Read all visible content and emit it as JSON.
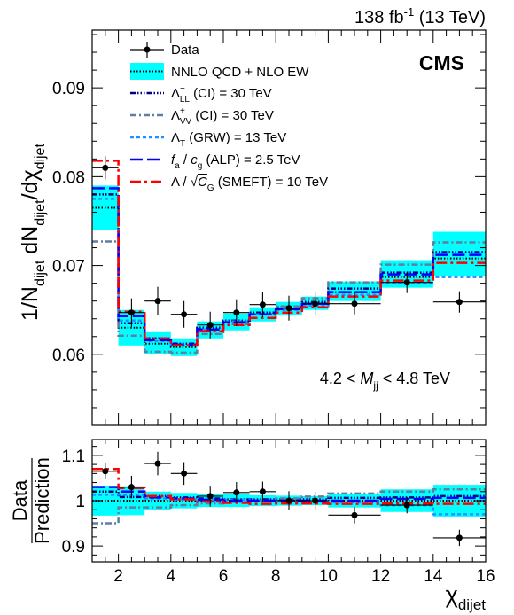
{
  "header": {
    "lumi_value": "138 fb",
    "lumi_exp": "-1",
    "lumi_energy": " (13 TeV)",
    "experiment": "CMS"
  },
  "annotation": {
    "prefix": "4.2 < ",
    "m_letter": "M",
    "m_sub": "jj",
    "suffix": " < 4.8 TeV"
  },
  "legend": {
    "data": "Data",
    "nnlo": "NNLO QCD + NLO EW",
    "ci_ll": {
      "sym": "Λ",
      "sub": "LL",
      "sup": "−",
      "text": " (CI) = 30 TeV"
    },
    "ci_vv": {
      "sym": "Λ",
      "sub": "VV",
      "sup": "+",
      "text": " (CI) = 30 TeV"
    },
    "grw": {
      "sym": "Λ",
      "sub": "T",
      "text": " (GRW) = 13 TeV"
    },
    "alp": {
      "f": "f",
      "f_sub": "a",
      "mid": " / ",
      "c": "c",
      "c_sub": "g",
      "text": " (ALP) = 2.5 TeV"
    },
    "smeft": {
      "pre": "Λ / ",
      "c": "C",
      "c_sub": "G",
      "text": " (SMEFT) = 10 TeV"
    }
  },
  "colors": {
    "band": "#00ffff",
    "nnlo_line": "#000000",
    "ci_ll": "#000080",
    "ci_vv": "#5f7f9f",
    "grw": "#1e90ff",
    "alp": "#0000ff",
    "smeft": "#ff0000",
    "data": "#000000"
  },
  "chart_data": [
    {
      "type": "line",
      "panel": "main",
      "ylabel": "1/N dN/dχ",
      "ylabel_parts": {
        "n": "1/N",
        "n_sub": "dijet",
        "dn": " dN",
        "dn_sub": "dijet",
        "dchi": "/dχ",
        "dchi_sub": "dijet"
      },
      "xlim": [
        1,
        16
      ],
      "ylim": [
        0.052,
        0.0965
      ],
      "yticks": [
        0.06,
        0.07,
        0.08,
        0.09
      ],
      "ytick_labels": [
        "0.06",
        "0.07",
        "0.08",
        "0.09"
      ],
      "x_edges": [
        1,
        2,
        3,
        4,
        5,
        6,
        7,
        8,
        9,
        10,
        12,
        14,
        16
      ],
      "series": [
        {
          "name": "Data",
          "kind": "points",
          "x": [
            1.5,
            2.5,
            3.5,
            4.5,
            5.5,
            6.5,
            7.5,
            8.5,
            9.5,
            11,
            13,
            15
          ],
          "y": [
            0.081,
            0.0647,
            0.066,
            0.0645,
            0.0633,
            0.0647,
            0.0656,
            0.0652,
            0.0657,
            0.0657,
            0.0681,
            0.0659
          ],
          "yerr": [
            0.0013,
            0.0016,
            0.0016,
            0.0015,
            0.0015,
            0.0015,
            0.0014,
            0.0014,
            0.0013,
            0.0012,
            0.0012,
            0.0012
          ]
        },
        {
          "name": "NNLO QCD + NLO EW",
          "kind": "band",
          "values": [
            0.0765,
            0.063,
            0.0612,
            0.0608,
            0.0627,
            0.0636,
            0.0645,
            0.0651,
            0.0657,
            0.067,
            0.0687,
            0.0708
          ],
          "lo": [
            0.074,
            0.061,
            0.06,
            0.0598,
            0.0618,
            0.0627,
            0.0637,
            0.0644,
            0.065,
            0.066,
            0.0675,
            0.0688
          ],
          "hi": [
            0.079,
            0.065,
            0.0625,
            0.0618,
            0.0637,
            0.0646,
            0.0653,
            0.0659,
            0.0665,
            0.0682,
            0.0706,
            0.0738
          ]
        },
        {
          "name": "Λ_LL^− (CI) = 30 TeV",
          "kind": "step",
          "values": [
            0.078,
            0.0635,
            0.0618,
            0.0612,
            0.063,
            0.0638,
            0.0647,
            0.0653,
            0.0659,
            0.0674,
            0.0692,
            0.0715
          ]
        },
        {
          "name": "Λ_VV^+ (CI) = 30 TeV",
          "kind": "step",
          "values": [
            0.0727,
            0.0621,
            0.0603,
            0.0602,
            0.0623,
            0.0634,
            0.0645,
            0.0654,
            0.0663,
            0.0681,
            0.0701,
            0.0726
          ]
        },
        {
          "name": "Λ_T (GRW) = 13 TeV",
          "kind": "step",
          "values": [
            0.0775,
            0.0638,
            0.0615,
            0.061,
            0.0628,
            0.0637,
            0.0645,
            0.065,
            0.0655,
            0.0667,
            0.068,
            0.0687
          ]
        },
        {
          "name": "f_a / c_g (ALP) = 2.5 TeV",
          "kind": "step",
          "values": [
            0.0787,
            0.0643,
            0.0616,
            0.0611,
            0.0628,
            0.0636,
            0.0645,
            0.0651,
            0.0657,
            0.067,
            0.069,
            0.0712
          ]
        },
        {
          "name": "Λ / √C_G (SMEFT) = 10 TeV",
          "kind": "step",
          "values": [
            0.0818,
            0.0648,
            0.0618,
            0.061,
            0.0626,
            0.0633,
            0.0641,
            0.0647,
            0.0653,
            0.0665,
            0.0683,
            0.0703
          ]
        }
      ]
    },
    {
      "type": "line",
      "panel": "ratio",
      "ylabel_top": "Data",
      "ylabel_bottom": "Prediction",
      "xlabel": "χ",
      "xlabel_sub": "dijet",
      "xlim": [
        1,
        16
      ],
      "ylim": [
        0.865,
        1.135
      ],
      "xticks": [
        2,
        4,
        6,
        8,
        10,
        12,
        14,
        16
      ],
      "xtick_labels": [
        "2",
        "4",
        "6",
        "8",
        "10",
        "12",
        "14",
        "16"
      ],
      "yticks": [
        0.9,
        1.0,
        1.1
      ],
      "ytick_labels": [
        "0.9",
        "1",
        "1.1"
      ],
      "x_edges": [
        1,
        2,
        3,
        4,
        5,
        6,
        7,
        8,
        9,
        10,
        12,
        14,
        16
      ],
      "series": [
        {
          "name": "Data",
          "kind": "points",
          "x": [
            1.5,
            2.5,
            3.5,
            4.5,
            5.5,
            6.5,
            7.5,
            8.5,
            9.5,
            11,
            13,
            15
          ],
          "y": [
            1.065,
            1.03,
            1.082,
            1.06,
            1.01,
            1.018,
            1.02,
            1.0,
            1.0,
            0.968,
            0.99,
            0.918
          ],
          "yerr": [
            0.018,
            0.025,
            0.026,
            0.025,
            0.023,
            0.023,
            0.022,
            0.021,
            0.02,
            0.018,
            0.018,
            0.018
          ]
        },
        {
          "name": "NNLO QCD + NLO EW",
          "kind": "band",
          "values": [
            1.0,
            1.0,
            1.0,
            1.0,
            1.0,
            1.0,
            1.0,
            1.0,
            1.0,
            1.0,
            1.0,
            1.0
          ],
          "lo": [
            0.967,
            0.968,
            0.98,
            0.983,
            0.986,
            0.986,
            0.988,
            0.989,
            0.99,
            0.985,
            0.975,
            0.965
          ],
          "hi": [
            1.033,
            1.032,
            1.02,
            1.017,
            1.014,
            1.014,
            1.012,
            1.011,
            1.01,
            1.015,
            1.025,
            1.035
          ]
        },
        {
          "name": "Λ_LL^− (CI) = 30 TeV",
          "kind": "step",
          "values": [
            1.02,
            1.008,
            1.01,
            1.007,
            1.005,
            1.003,
            1.003,
            1.003,
            1.003,
            1.006,
            1.007,
            1.01
          ]
        },
        {
          "name": "Λ_VV^+ (CI) = 30 TeV",
          "kind": "step",
          "values": [
            0.95,
            0.985,
            0.985,
            0.99,
            0.994,
            0.997,
            1.0,
            1.005,
            1.009,
            1.016,
            1.02,
            1.025
          ]
        },
        {
          "name": "Λ_T (GRW) = 13 TeV",
          "kind": "step",
          "values": [
            1.013,
            1.013,
            1.005,
            1.003,
            1.002,
            1.002,
            1.0,
            0.998,
            0.997,
            0.996,
            0.99,
            0.97
          ]
        },
        {
          "name": "f_a / c_g (ALP) = 2.5 TeV",
          "kind": "step",
          "values": [
            1.03,
            1.02,
            1.007,
            1.005,
            1.002,
            1.0,
            1.0,
            1.0,
            1.0,
            1.0,
            1.004,
            1.006
          ]
        },
        {
          "name": "Λ / √C_G (SMEFT) = 10 TeV",
          "kind": "step",
          "values": [
            1.07,
            1.028,
            1.01,
            1.003,
            0.998,
            0.995,
            0.993,
            0.994,
            0.994,
            0.993,
            0.994,
            0.993
          ]
        }
      ]
    }
  ]
}
